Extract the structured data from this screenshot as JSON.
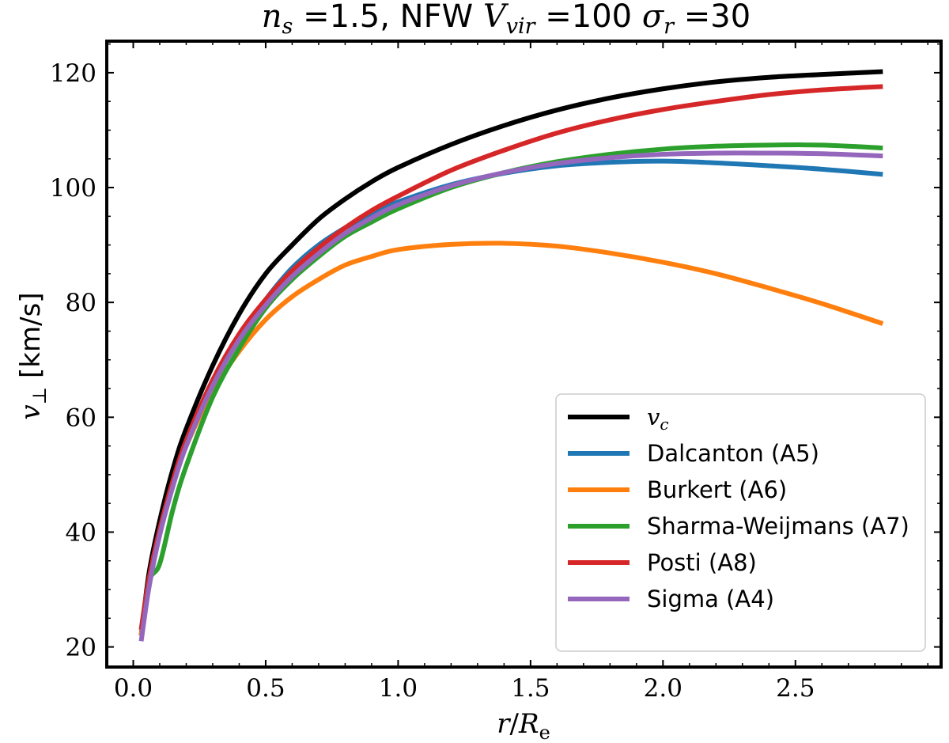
{
  "chart_data": {
    "type": "line",
    "title": {
      "prefix_var": "n",
      "prefix_sub": "s",
      "eq1": " =1.5, NFW ",
      "mid_var": "V",
      "mid_sub": "vir",
      "eq2": " =100 ",
      "end_var": "σ",
      "end_sub": "r",
      "eq3": " =30"
    },
    "xlabel": {
      "var": "r",
      "sep": "/",
      "var2": "R",
      "sub": "e"
    },
    "ylabel": {
      "var": "v",
      "sub": "⊥",
      "unit": " [km/s]"
    },
    "xlim": [
      -0.1,
      3.05
    ],
    "ylim": [
      16.5,
      125.5
    ],
    "xticks": [
      0.0,
      0.5,
      1.0,
      1.5,
      2.0,
      2.5
    ],
    "xtick_labels": [
      "0.0",
      "0.5",
      "1.0",
      "1.5",
      "2.0",
      "2.5"
    ],
    "yticks": [
      20,
      40,
      60,
      80,
      100,
      120
    ],
    "ytick_labels": [
      "20",
      "40",
      "60",
      "80",
      "100",
      "120"
    ],
    "grid": false,
    "legend_position": "lower-right",
    "x": [
      0.03,
      0.06,
      0.1,
      0.15,
      0.2,
      0.3,
      0.4,
      0.5,
      0.6,
      0.7,
      0.8,
      0.9,
      1.0,
      1.2,
      1.4,
      1.6,
      1.8,
      2.0,
      2.2,
      2.4,
      2.6,
      2.83
    ],
    "series": [
      {
        "name": "v_c",
        "math": true,
        "legend_var": "v",
        "legend_sub": "c",
        "color": "#000000",
        "values": [
          22,
          33,
          42,
          51,
          58,
          69,
          78,
          85,
          90,
          94.5,
          98,
          101,
          103.5,
          107.5,
          110.8,
          113.5,
          115.6,
          117.2,
          118.4,
          119.2,
          119.7,
          120.2
        ]
      },
      {
        "name": "Dalcanton (A5)",
        "color": "#1f77b4",
        "values": [
          22,
          31,
          40,
          48.5,
          55.5,
          66,
          74,
          80.5,
          86,
          90,
          93,
          95.5,
          97.5,
          100.5,
          102.5,
          103.8,
          104.4,
          104.6,
          104.3,
          103.8,
          103.2,
          102.3
        ]
      },
      {
        "name": "Burkert (A6)",
        "color": "#ff7f0e",
        "values": [
          22,
          31,
          40,
          48.5,
          55,
          64.5,
          71.5,
          77,
          81,
          84,
          86.5,
          88,
          89.2,
          90.1,
          90.3,
          89.8,
          88.6,
          87,
          85,
          82.5,
          79.8,
          76.3
        ]
      },
      {
        "name": "Sharma-Weijmans (A7)",
        "color": "#2ca02c",
        "values": [
          23,
          31.5,
          34.5,
          44,
          51.5,
          63.5,
          72,
          79,
          84,
          88,
          91.5,
          94,
          96.3,
          100,
          102.6,
          104.5,
          105.8,
          106.7,
          107.2,
          107.4,
          107.4,
          106.9
        ]
      },
      {
        "name": "Posti (A8)",
        "color": "#d62728",
        "values": [
          23,
          32,
          40.5,
          49,
          56,
          66.5,
          74.5,
          80.5,
          85.5,
          89.5,
          93,
          96,
          98.5,
          103,
          106.5,
          109.5,
          111.8,
          113.6,
          115,
          116.2,
          117,
          117.6
        ]
      },
      {
        "name": "Sigma (A4)",
        "color": "#9467bd",
        "values": [
          21,
          30.5,
          39.5,
          48,
          55,
          65.5,
          73.5,
          79.5,
          84.5,
          88.5,
          92,
          94.7,
          97,
          100.3,
          102.6,
          104.2,
          105.2,
          105.8,
          106,
          106,
          105.9,
          105.5
        ]
      }
    ]
  }
}
